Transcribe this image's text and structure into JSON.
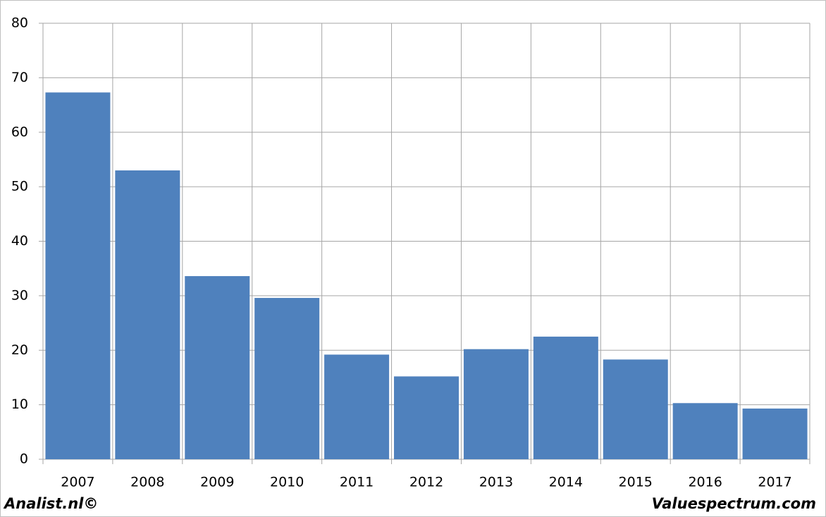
{
  "chart_data": {
    "type": "bar",
    "categories": [
      "2007",
      "2008",
      "2009",
      "2010",
      "2011",
      "2012",
      "2013",
      "2014",
      "2015",
      "2016",
      "2017"
    ],
    "values": [
      67.3,
      53,
      33.6,
      29.6,
      19.2,
      15.2,
      20.2,
      22.5,
      18.3,
      10.3,
      9.3
    ],
    "color": "#4f81bd",
    "ylim": [
      0,
      80
    ],
    "yticks": [
      0,
      10,
      20,
      30,
      40,
      50,
      60,
      70,
      80
    ],
    "grid": true,
    "footer_left": "Analist.nl©",
    "footer_right": "Valuespectrum.com"
  }
}
